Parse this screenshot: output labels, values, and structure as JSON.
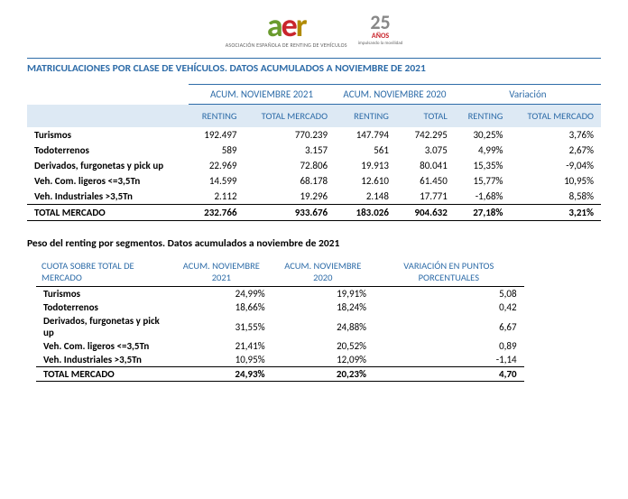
{
  "logo": {
    "aer_sub": "ASOCIACIÓN ESPAÑOLA DE\nRENTING DE VEHÍCULOS",
    "twentyfive": "25",
    "anos": "AÑOS",
    "anos_sub": "impulsando la movilidad"
  },
  "title1": "MATRICULACIONES POR CLASE DE VEHÍCULOS. DATOS ACUMULADOS A NOVIEMBRE DE 2021",
  "table1": {
    "group_headers": [
      "ACUM. NOVIEMBRE 2021",
      "ACUM. NOVIEMBRE 2020",
      "Variación"
    ],
    "sub_headers": [
      "RENTING",
      "TOTAL MERCADO",
      "RENTING",
      "TOTAL",
      "RENTING",
      "TOTAL MERCADO"
    ],
    "rows": [
      {
        "label": "Turismos",
        "cells": [
          "192.497",
          "770.239",
          "147.794",
          "742.295",
          "30,25%",
          "3,76%"
        ]
      },
      {
        "label": "Todoterrenos",
        "cells": [
          "589",
          "3.157",
          "561",
          "3.075",
          "4,99%",
          "2,67%"
        ]
      },
      {
        "label": "Derivados, furgonetas y pick up",
        "cells": [
          "22.969",
          "72.806",
          "19.913",
          "80.041",
          "15,35%",
          "-9,04%"
        ]
      },
      {
        "label": "Veh. Com. ligeros <=3,5Tn",
        "cells": [
          "14.599",
          "68.178",
          "12.610",
          "61.450",
          "15,77%",
          "10,95%"
        ]
      },
      {
        "label": "Veh. Industriales >3,5Tn",
        "cells": [
          "2.112",
          "19.296",
          "2.148",
          "17.771",
          "-1,68%",
          "8,58%"
        ]
      }
    ],
    "total": {
      "label": "TOTAL MERCADO",
      "cells": [
        "232.766",
        "933.676",
        "183.026",
        "904.632",
        "27,18%",
        "3,21%"
      ]
    }
  },
  "title2": "Peso del renting por segmentos. Datos acumulados a noviembre de 2021",
  "table2": {
    "head_left": "CUOTA SOBRE TOTAL DE MERCADO",
    "head_cols": [
      "ACUM. NOVIEMBRE 2021",
      "ACUM. NOVIEMBRE 2020",
      "VARIACIÓN EN PUNTOS PORCENTUALES"
    ],
    "rows": [
      {
        "label": "Turismos",
        "cells": [
          "24,99%",
          "19,91%",
          "5,08"
        ]
      },
      {
        "label": "Todoterrenos",
        "cells": [
          "18,66%",
          "18,24%",
          "0,42"
        ]
      },
      {
        "label": "Derivados, furgonetas y pick up",
        "cells": [
          "31,55%",
          "24,88%",
          "6,67"
        ]
      },
      {
        "label": "Veh. Com. ligeros <=3,5Tn",
        "cells": [
          "21,41%",
          "20,52%",
          "0,89"
        ]
      },
      {
        "label": "Veh. Industriales >3,5Tn",
        "cells": [
          "10,95%",
          "12,09%",
          "-1,14"
        ]
      }
    ],
    "total": {
      "label": "TOTAL MERCADO",
      "cells": [
        "24,93%",
        "20,23%",
        "4,70"
      ]
    }
  }
}
